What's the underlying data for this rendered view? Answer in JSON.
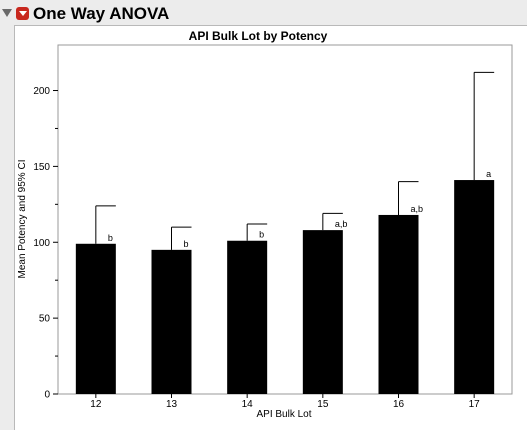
{
  "report": {
    "title": "One Way ANOVA"
  },
  "chart_data": {
    "type": "bar",
    "title": "API Bulk Lot by Potency",
    "xlabel": "API Bulk Lot",
    "ylabel": "Mean Potency and 95% CI",
    "categories": [
      "12",
      "13",
      "14",
      "15",
      "16",
      "17"
    ],
    "values": [
      99,
      95,
      101,
      108,
      118,
      141
    ],
    "ci_upper": [
      124,
      110,
      112,
      119,
      140,
      212
    ],
    "letters": [
      "b",
      "b",
      "b",
      "a,b",
      "a,b",
      "a"
    ],
    "ylim": [
      0,
      230
    ],
    "yticks": [
      0,
      50,
      100,
      150,
      200
    ],
    "bar_color": "#000000",
    "grid": false
  }
}
